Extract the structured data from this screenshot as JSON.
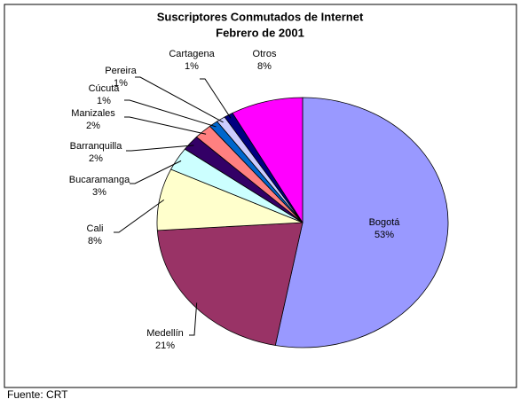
{
  "chart_data": {
    "type": "pie",
    "title": "Suscriptores Conmutados de Internet",
    "subtitle": "Febrero de 2001",
    "categories": [
      "Bogotá",
      "Medellín",
      "Cali",
      "Bucaramanga",
      "Barranquilla",
      "Manizales",
      "Cúcuta",
      "Pereira",
      "Cartagena",
      "Otros"
    ],
    "values": [
      53,
      21,
      8,
      3,
      2,
      2,
      1,
      1,
      1,
      8
    ],
    "value_labels": [
      "53%",
      "21%",
      "8%",
      "3%",
      "2%",
      "2%",
      "1%",
      "1%",
      "1%",
      "8%"
    ],
    "colors": [
      "#9999ff",
      "#993366",
      "#ffffcc",
      "#ccffff",
      "#330066",
      "#ff8080",
      "#0066cc",
      "#ccccff",
      "#000080",
      "#ff00ff"
    ]
  },
  "footer": "Fuente: CRT"
}
